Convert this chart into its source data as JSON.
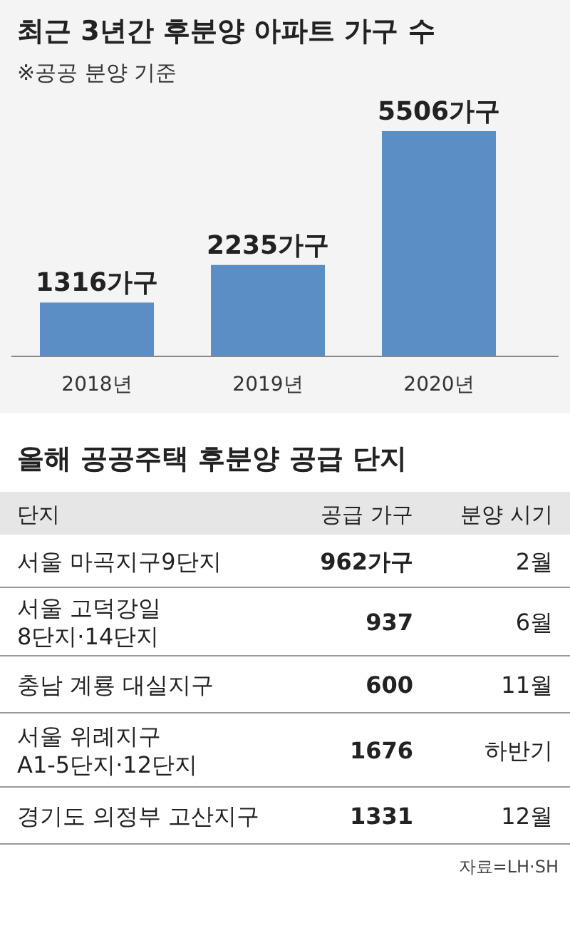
{
  "chart_data": [
    {
      "type": "bar",
      "title": "최근 3년간 후분양 아파트 가구 수",
      "subtitle": "※공공 분양 기준",
      "categories": [
        "2018년",
        "2019년",
        "2020년"
      ],
      "values": [
        1316,
        2235,
        5506
      ],
      "value_labels": [
        "1316가구",
        "2235가구",
        "5506가구"
      ],
      "color": "#5b8ec4"
    },
    {
      "type": "other",
      "title": "올해 공공주택 후분양 공급 단지",
      "annotations": [
        "단지",
        "공급 가구",
        "분양 시기",
        "서울 마곡지구9단지",
        "962가구",
        "2월",
        "서울 고덕강일\n8단지·14단지",
        "937",
        "6월",
        "충남 계룡 대실지구",
        "600",
        "11월",
        "서울 위례지구\nA1-5단지·12단지",
        "1676",
        "하반기",
        "경기도 의정부 고산지구",
        "1331",
        "12월",
        "자료=LH·SH"
      ]
    }
  ]
}
